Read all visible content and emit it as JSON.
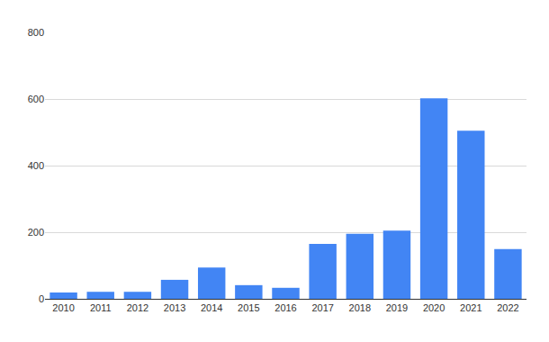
{
  "chart_data": {
    "type": "bar",
    "categories": [
      "2010",
      "2011",
      "2012",
      "2013",
      "2014",
      "2015",
      "2016",
      "2017",
      "2018",
      "2019",
      "2020",
      "2021",
      "2022"
    ],
    "values": [
      19,
      21,
      21,
      57,
      94,
      41,
      33,
      165,
      195,
      205,
      602,
      505,
      149
    ],
    "color": "#4285f4",
    "ylim": [
      0,
      800
    ],
    "yticks": [
      0,
      200,
      400,
      600,
      800
    ],
    "grid": true
  }
}
